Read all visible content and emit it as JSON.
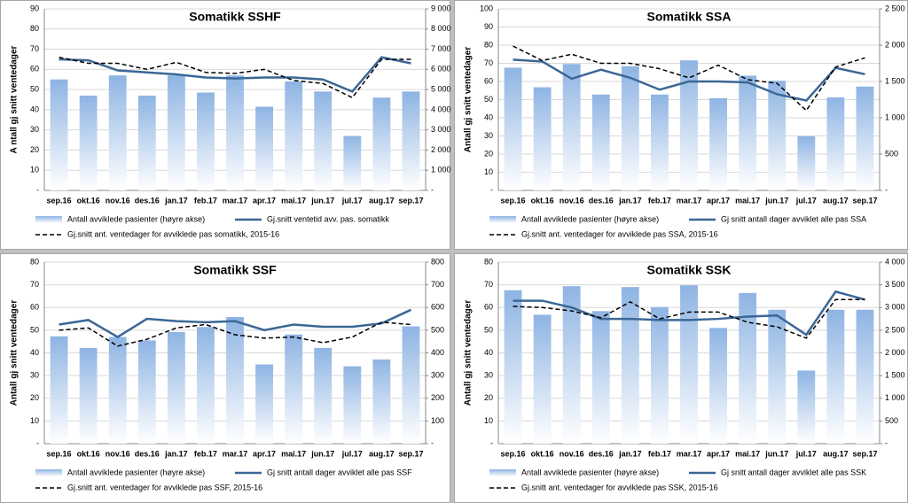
{
  "chart_data": [
    {
      "type": "combo",
      "title": "Somatikk SSHF",
      "y_label": "A ntall gj snitt ventedager",
      "categories": [
        "sep.16",
        "okt.16",
        "nov.16",
        "des.16",
        "jan.17",
        "feb.17",
        "mar.17",
        "apr.17",
        "mai.17",
        "jun.17",
        "jul.17",
        "aug.17",
        "sep.17"
      ],
      "ylim": [
        0,
        90
      ],
      "yticks": [
        {
          "value": 0,
          "label": "-"
        },
        10,
        20,
        30,
        40,
        50,
        60,
        70,
        80,
        90
      ],
      "y2lim": [
        0,
        9000
      ],
      "y2ticks": [
        {
          "value": 0,
          "label": "-"
        },
        {
          "value": 1000,
          "label": "1 000"
        },
        {
          "value": 2000,
          "label": "2 000"
        },
        {
          "value": 3000,
          "label": "3 000"
        },
        {
          "value": 4000,
          "label": "4 000"
        },
        {
          "value": 5000,
          "label": "5 000"
        },
        {
          "value": 6000,
          "label": "6 000"
        },
        {
          "value": 7000,
          "label": "7 000"
        },
        {
          "value": 8000,
          "label": "8 000"
        },
        {
          "value": 9000,
          "label": "9 000"
        }
      ],
      "grid": true,
      "series": [
        {
          "name": "Antall avviklede pasienter (høyre akse)",
          "style": "bar",
          "axis": "y2",
          "color": "#8eb4e3",
          "values": [
            5500,
            4700,
            5700,
            4700,
            5700,
            4850,
            5700,
            4150,
            5400,
            4900,
            2700,
            4600,
            4900
          ]
        },
        {
          "name": "Gj.snitt ventetid avv. pas. somatikk",
          "style": "line",
          "color": "#3a6796",
          "values": [
            65,
            64.5,
            59.5,
            58.5,
            57.5,
            56,
            55.5,
            56,
            56,
            55,
            49,
            66,
            63
          ]
        },
        {
          "name": "Gj.snitt ant. ventedager for avviklede pas somatikk, 2015-16",
          "style": "dashed",
          "color": "#000000",
          "values": [
            66,
            63,
            63,
            60,
            63.5,
            58.5,
            58,
            60,
            54.5,
            53,
            46,
            65,
            65
          ]
        }
      ]
    },
    {
      "type": "combo",
      "title": "Somatikk SSA",
      "y_label": "Antall gj snitt ventedager",
      "categories": [
        "sep.16",
        "okt.16",
        "nov.16",
        "des.16",
        "jan.17",
        "feb.17",
        "mar.17",
        "apr.17",
        "mai.17",
        "jun.17",
        "jul.17",
        "aug.17",
        "sep.17"
      ],
      "ylim": [
        0,
        100
      ],
      "yticks": [
        {
          "value": 0,
          "label": "-"
        },
        10,
        20,
        30,
        40,
        50,
        60,
        70,
        80,
        90,
        100
      ],
      "y2lim": [
        0,
        2500
      ],
      "y2ticks": [
        {
          "value": 0,
          "label": "-"
        },
        500,
        {
          "value": 1000,
          "label": "1 000"
        },
        {
          "value": 1500,
          "label": "1 500"
        },
        {
          "value": 2000,
          "label": "2 000"
        },
        {
          "value": 2500,
          "label": "2 500"
        }
      ],
      "grid": true,
      "series": [
        {
          "name": "Antall avviklede pasienter (høyre akse)",
          "style": "bar",
          "axis": "y2",
          "color": "#8eb4e3",
          "values": [
            1690,
            1420,
            1740,
            1320,
            1710,
            1320,
            1790,
            1270,
            1580,
            1510,
            745,
            1280,
            1430
          ]
        },
        {
          "name": "Gj snitt antall dager avviklet alle pas SSA",
          "style": "line",
          "color": "#3a6796",
          "values": [
            72,
            71,
            61.5,
            66.5,
            62,
            55.5,
            60,
            60,
            59.5,
            53,
            49.5,
            67.5,
            64
          ]
        },
        {
          "name": "Gj.snitt ant. ventedager for avviklede pas SSA, 2015-16",
          "style": "dashed",
          "color": "#000000",
          "values": [
            79.5,
            71.5,
            75,
            70,
            70,
            67,
            62,
            69,
            61,
            59,
            44,
            68,
            73
          ]
        }
      ]
    },
    {
      "type": "combo",
      "title": "Somatikk SSF",
      "y_label": "Antall gj snitt ventedager",
      "categories": [
        "sep.16",
        "okt.16",
        "nov.16",
        "des.16",
        "jan.17",
        "feb.17",
        "mar.17",
        "apr.17",
        "mai.17",
        "jun.17",
        "jul.17",
        "aug.17",
        "sep.17"
      ],
      "ylim": [
        0,
        80
      ],
      "yticks": [
        {
          "value": 0,
          "label": "-"
        },
        10,
        20,
        30,
        40,
        50,
        60,
        70,
        80
      ],
      "y2lim": [
        0,
        800
      ],
      "y2ticks": [
        {
          "value": 0,
          "label": "-"
        },
        100,
        200,
        300,
        400,
        500,
        600,
        700,
        800
      ],
      "grid": true,
      "series": [
        {
          "name": "Antall avviklede pasienter (høyre akse)",
          "style": "bar",
          "axis": "y2",
          "color": "#8eb4e3",
          "values": [
            473,
            422,
            470,
            455,
            492,
            514,
            558,
            349,
            481,
            422,
            341,
            371,
            517
          ]
        },
        {
          "name": "Gj snitt antall dager avviklet alle pas SSF",
          "style": "line",
          "color": "#3a6796",
          "values": [
            52.5,
            54.5,
            47,
            55,
            54,
            53.5,
            54,
            50,
            52.5,
            51.5,
            51.5,
            53,
            59
          ]
        },
        {
          "name": "Gj.snitt ant. ventedager for avviklede pas SSF, 2015-16",
          "style": "dashed",
          "color": "#000000",
          "values": [
            50,
            51,
            43,
            46,
            51,
            52.5,
            48,
            46.5,
            47,
            44.5,
            47,
            53.5,
            52.5
          ]
        }
      ]
    },
    {
      "type": "combo",
      "title": "Somatikk SSK",
      "y_label": "Antall gj snitt ventedager",
      "categories": [
        "sep.16",
        "okt.16",
        "nov.16",
        "des.16",
        "jan.17",
        "feb.17",
        "mar.17",
        "apr.17",
        "mai.17",
        "jun.17",
        "jul.17",
        "aug.17",
        "sep.17"
      ],
      "ylim": [
        0,
        80
      ],
      "yticks": [
        {
          "value": 0,
          "label": "-"
        },
        10,
        20,
        30,
        40,
        50,
        60,
        70,
        80
      ],
      "y2lim": [
        0,
        4000
      ],
      "y2ticks": [
        {
          "value": 0,
          "label": "-"
        },
        500,
        {
          "value": 1000,
          "label": "1 000"
        },
        {
          "value": 1500,
          "label": "1 500"
        },
        {
          "value": 2000,
          "label": "2 000"
        },
        {
          "value": 2500,
          "label": "2 500"
        },
        {
          "value": 3000,
          "label": "3 000"
        },
        {
          "value": 3500,
          "label": "3 500"
        },
        {
          "value": 4000,
          "label": "4 000"
        }
      ],
      "grid": true,
      "series": [
        {
          "name": "Antall avviklede pasienter (høyre akse)",
          "style": "bar",
          "axis": "y2",
          "color": "#8eb4e3",
          "values": [
            3380,
            2840,
            3470,
            2920,
            3450,
            3010,
            3490,
            2550,
            3320,
            2950,
            1610,
            2950,
            2950
          ]
        },
        {
          "name": "Gj snitt antall dager avviklet alle pas SSK",
          "style": "line",
          "color": "#3a6796",
          "values": [
            63,
            63,
            60,
            55,
            55,
            54.5,
            54.5,
            55,
            56,
            56.5,
            48,
            67,
            63.5
          ]
        },
        {
          "name": "Gj.snitt ant. ventedager for avviklede pas SSK, 2015-16",
          "style": "dashed",
          "color": "#000000",
          "values": [
            60.5,
            60,
            58.5,
            55.5,
            62.5,
            55,
            58,
            58,
            53.5,
            51.5,
            46.5,
            63.5,
            63.5
          ]
        }
      ]
    }
  ]
}
